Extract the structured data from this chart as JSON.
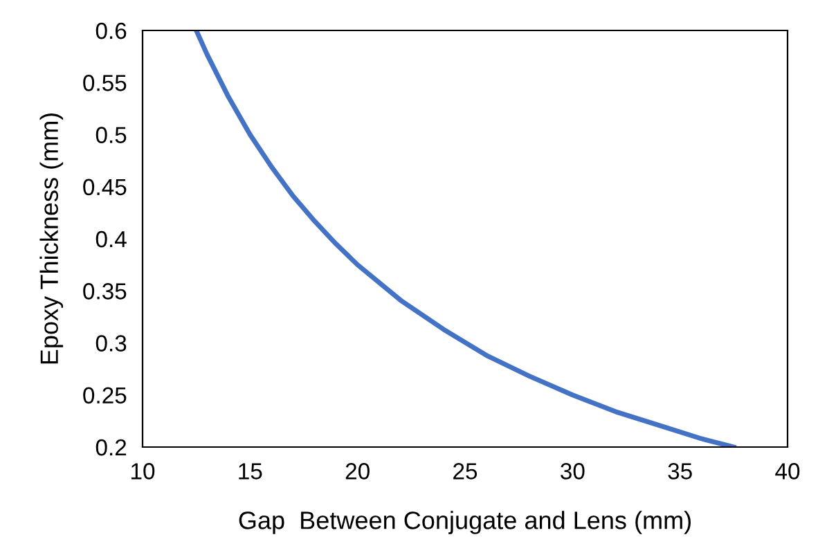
{
  "chart_data": {
    "type": "line",
    "xlabel": "Gap  Between Conjugate and Lens (mm)",
    "ylabel": "Epoxy Thickness (mm)",
    "x": [
      12.5,
      13,
      14,
      15,
      16,
      17,
      18,
      19,
      20,
      22,
      24,
      26,
      28,
      30,
      32,
      34,
      36,
      37.5
    ],
    "series": [
      {
        "color": "#4472c4",
        "values": [
          0.6,
          0.577,
          0.536,
          0.5,
          0.469,
          0.441,
          0.417,
          0.395,
          0.375,
          0.341,
          0.313,
          0.288,
          0.268,
          0.25,
          0.234,
          0.221,
          0.208,
          0.2
        ]
      }
    ],
    "xlim": [
      10,
      40
    ],
    "xticks": [
      10,
      15,
      20,
      25,
      30,
      35,
      40
    ],
    "ylim": [
      0.2,
      0.6
    ],
    "yticks": [
      {
        "value": 0.2,
        "label": "0.2"
      },
      {
        "value": 0.25,
        "label": "0.25"
      },
      {
        "value": 0.3,
        "label": "0.3"
      },
      {
        "value": 0.35,
        "label": "0.35"
      },
      {
        "value": 0.4,
        "label": "0.4"
      },
      {
        "value": 0.45,
        "label": "0.45"
      },
      {
        "value": 0.5,
        "label": "0.5"
      },
      {
        "value": 0.55,
        "label": "0.55"
      },
      {
        "value": 0.6,
        "label": "0.6"
      }
    ],
    "grid": false,
    "legend": false,
    "marker": "none",
    "line_style": "solid"
  }
}
